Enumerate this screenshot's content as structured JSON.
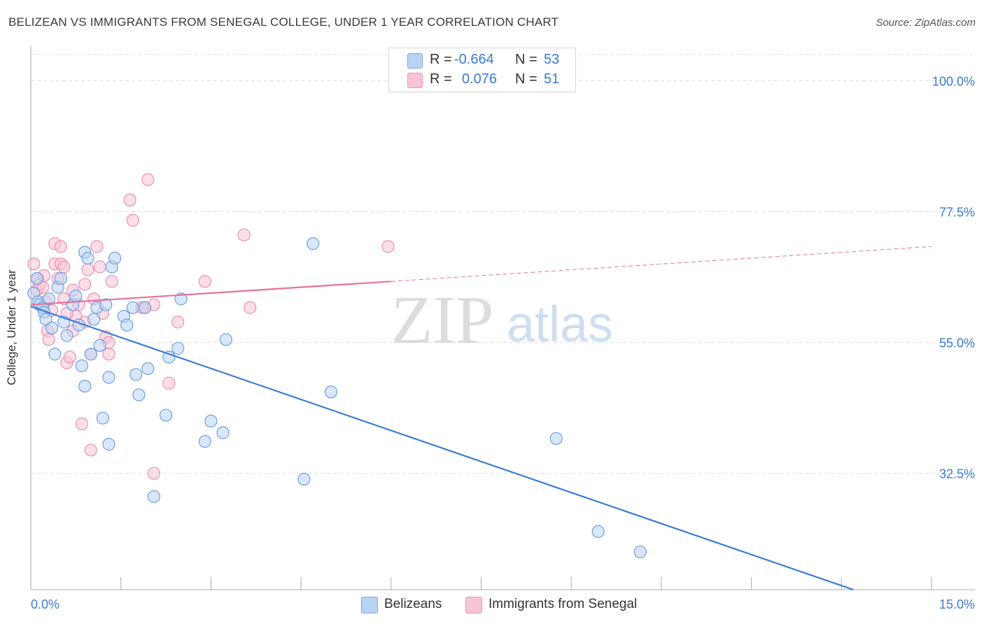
{
  "title": "BELIZEAN VS IMMIGRANTS FROM SENEGAL COLLEGE, UNDER 1 YEAR CORRELATION CHART",
  "source": "Source: ZipAtlas.com",
  "watermark": {
    "zip": "ZIP",
    "atlas": "atlas"
  },
  "colors": {
    "blue": "#3a7bd5",
    "blue_fill": "#b9d3f5",
    "pink": "#e8709a",
    "pink_fill": "#f7c4d6",
    "grid": "#dcdcdc",
    "axis_text": "#3a7bd5"
  },
  "legend": {
    "rows": [
      {
        "r_label": "R =",
        "r_value": "-0.664",
        "n_label": "N =",
        "n_value": "53"
      },
      {
        "r_label": "R =",
        "r_value": "0.076",
        "n_label": "N =",
        "n_value": "51"
      }
    ]
  },
  "bottom_legend": {
    "items": [
      {
        "label": "Belizeans"
      },
      {
        "label": "Immigrants from Senegal"
      }
    ]
  },
  "chart_data": {
    "type": "scatter",
    "title": "BELIZEAN VS IMMIGRANTS FROM SENEGAL COLLEGE, UNDER 1 YEAR CORRELATION CHART",
    "xlabel": "",
    "ylabel": "College, Under 1 year",
    "xlim": [
      0.0,
      15.0
    ],
    "ylim": [
      12.5,
      104.5
    ],
    "x_tick_labels": [
      "0.0%",
      "15.0%"
    ],
    "y_tick_values": [
      100.0,
      77.5,
      55.0,
      32.5
    ],
    "y_tick_labels": [
      "100.0%",
      "77.5%",
      "55.0%",
      "32.5%"
    ],
    "grid": true,
    "legend_position": "top-center",
    "series": [
      {
        "name": "Belizeans",
        "color": "#3a7bd5",
        "r": -0.664,
        "n": 53,
        "trend": {
          "x": [
            0.0,
            13.7
          ],
          "y": [
            61.2,
            12.5
          ],
          "dashed_extension": false
        },
        "points": [
          [
            0.05,
            63.5
          ],
          [
            0.1,
            66.0
          ],
          [
            0.12,
            62.0
          ],
          [
            0.15,
            61.5
          ],
          [
            0.2,
            61.0
          ],
          [
            0.22,
            60.2
          ],
          [
            0.25,
            59.0
          ],
          [
            0.35,
            57.5
          ],
          [
            0.4,
            53.0
          ],
          [
            0.45,
            64.5
          ],
          [
            0.5,
            66.0
          ],
          [
            0.55,
            58.5
          ],
          [
            0.6,
            56.2
          ],
          [
            0.7,
            61.5
          ],
          [
            0.75,
            63.0
          ],
          [
            0.8,
            58.0
          ],
          [
            0.85,
            51.0
          ],
          [
            0.9,
            70.5
          ],
          [
            0.9,
            47.5
          ],
          [
            0.95,
            69.5
          ],
          [
            1.0,
            53.0
          ],
          [
            1.05,
            59.0
          ],
          [
            1.1,
            61.0
          ],
          [
            1.15,
            54.5
          ],
          [
            1.2,
            42.0
          ],
          [
            1.25,
            61.5
          ],
          [
            1.3,
            37.5
          ],
          [
            1.3,
            49.0
          ],
          [
            1.35,
            68.0
          ],
          [
            1.4,
            69.5
          ],
          [
            1.55,
            59.5
          ],
          [
            1.6,
            58.0
          ],
          [
            1.7,
            61.0
          ],
          [
            1.75,
            49.5
          ],
          [
            1.8,
            46.0
          ],
          [
            1.9,
            61.0
          ],
          [
            1.95,
            50.5
          ],
          [
            2.05,
            28.5
          ],
          [
            2.25,
            42.5
          ],
          [
            2.3,
            52.5
          ],
          [
            2.45,
            54.0
          ],
          [
            2.5,
            62.5
          ],
          [
            2.9,
            38.0
          ],
          [
            3.0,
            41.5
          ],
          [
            3.2,
            39.5
          ],
          [
            3.25,
            55.5
          ],
          [
            4.55,
            31.5
          ],
          [
            4.7,
            72.0
          ],
          [
            5.0,
            46.5
          ],
          [
            8.75,
            38.5
          ],
          [
            9.45,
            22.5
          ],
          [
            10.15,
            19.0
          ],
          [
            0.3,
            62.5
          ]
        ]
      },
      {
        "name": "Immigrants from Senegal",
        "color": "#e8709a",
        "r": 0.076,
        "n": 51,
        "trend": {
          "x": [
            0.0,
            6.0,
            15.0
          ],
          "y": [
            61.5,
            65.5,
            71.5
          ],
          "dashed_extension": true
        },
        "points": [
          [
            0.05,
            68.5
          ],
          [
            0.1,
            64.0
          ],
          [
            0.12,
            66.0
          ],
          [
            0.15,
            65.0
          ],
          [
            0.2,
            64.5
          ],
          [
            0.25,
            62.0
          ],
          [
            0.28,
            57.0
          ],
          [
            0.3,
            55.5
          ],
          [
            0.35,
            60.5
          ],
          [
            0.4,
            68.5
          ],
          [
            0.4,
            72.0
          ],
          [
            0.45,
            66.0
          ],
          [
            0.5,
            71.5
          ],
          [
            0.5,
            68.5
          ],
          [
            0.55,
            68.0
          ],
          [
            0.55,
            62.5
          ],
          [
            0.6,
            51.5
          ],
          [
            0.65,
            52.5
          ],
          [
            0.7,
            64.0
          ],
          [
            0.7,
            57.0
          ],
          [
            0.75,
            59.5
          ],
          [
            0.8,
            61.5
          ],
          [
            0.85,
            41.0
          ],
          [
            0.9,
            65.0
          ],
          [
            0.9,
            58.5
          ],
          [
            0.95,
            67.5
          ],
          [
            1.0,
            53.0
          ],
          [
            1.0,
            36.5
          ],
          [
            1.05,
            62.5
          ],
          [
            1.1,
            71.5
          ],
          [
            1.15,
            68.0
          ],
          [
            1.2,
            60.0
          ],
          [
            1.25,
            56.0
          ],
          [
            1.3,
            55.0
          ],
          [
            1.3,
            53.0
          ],
          [
            1.35,
            65.5
          ],
          [
            1.65,
            79.5
          ],
          [
            1.7,
            76.0
          ],
          [
            1.85,
            61.0
          ],
          [
            1.9,
            61.0
          ],
          [
            1.95,
            83.0
          ],
          [
            2.05,
            61.5
          ],
          [
            2.05,
            32.5
          ],
          [
            2.3,
            48.0
          ],
          [
            2.45,
            58.5
          ],
          [
            2.9,
            65.5
          ],
          [
            3.55,
            73.5
          ],
          [
            3.65,
            61.0
          ],
          [
            5.95,
            71.5
          ],
          [
            0.22,
            66.5
          ],
          [
            0.6,
            60.0
          ]
        ]
      }
    ]
  }
}
